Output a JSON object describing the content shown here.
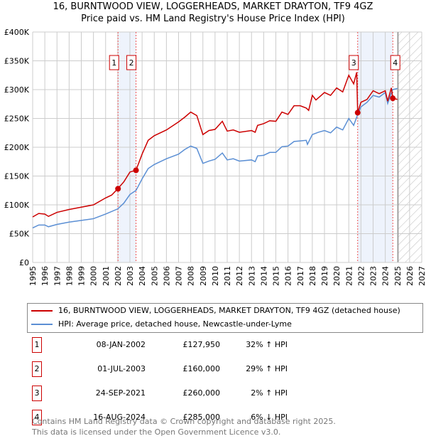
{
  "title": "16, BURNTWOOD VIEW, LOGGERHEADS, MARKET DRAYTON, TF9 4GZ",
  "subtitle": "Price paid vs. HM Land Registry's House Price Index (HPI)",
  "chart_data": {
    "type": "line",
    "ylim": [
      0,
      400000
    ],
    "xlim": [
      1995,
      2027
    ],
    "yticks": [
      "£0",
      "£50K",
      "£100K",
      "£150K",
      "£200K",
      "£250K",
      "£300K",
      "£350K",
      "£400K"
    ],
    "xticks": [
      "1995",
      "1996",
      "1997",
      "1998",
      "1999",
      "2000",
      "2001",
      "2002",
      "2003",
      "2004",
      "2005",
      "2006",
      "2007",
      "2008",
      "2009",
      "2010",
      "2011",
      "2012",
      "2013",
      "2014",
      "2015",
      "2016",
      "2017",
      "2018",
      "2019",
      "2020",
      "2021",
      "2022",
      "2023",
      "2024",
      "2025",
      "2026",
      "2027"
    ],
    "shaded": [
      [
        2002.02,
        2003.5
      ],
      [
        2021.73,
        2024.62
      ]
    ],
    "forecast_from": 2025.05,
    "series": [
      {
        "name": "16, BURNTWOOD VIEW, LOGGERHEADS, MARKET DRAYTON, TF9 4GZ (detached house)",
        "color": "#cc0000",
        "x": [
          1995,
          1995.5,
          1996,
          1996.3,
          1997,
          1998,
          1999,
          2000,
          2001,
          2001.5,
          2002,
          2002.5,
          2003,
          2003.5,
          2004,
          2004.5,
          2005,
          2006,
          2007,
          2007.5,
          2008,
          2008.5,
          2009,
          2009.5,
          2010,
          2010.6,
          2011,
          2011.5,
          2012,
          2013,
          2013.3,
          2013.5,
          2014,
          2014.5,
          2015,
          2015.5,
          2016,
          2016.5,
          2017,
          2017.5,
          2017.7,
          2018,
          2018.3,
          2019,
          2019.5,
          2020,
          2020.5,
          2021,
          2021.4,
          2021.65,
          2021.73,
          2022,
          2022.5,
          2023,
          2023.5,
          2024,
          2024.2,
          2024.5,
          2024.62,
          2025
        ],
        "y": [
          79,
          85,
          84,
          80,
          87,
          92,
          96,
          100,
          112,
          117,
          128,
          140,
          157,
          160,
          188,
          212,
          220,
          230,
          244,
          252,
          261,
          255,
          222,
          229,
          231,
          245,
          228,
          230,
          226,
          229,
          226,
          238,
          241,
          246,
          245,
          261,
          257,
          272,
          272,
          268,
          264,
          290,
          282,
          295,
          290,
          303,
          296,
          325,
          310,
          330,
          260,
          278,
          283,
          298,
          293,
          298,
          280,
          303,
          285,
          283
        ]
      },
      {
        "name": "HPI: Average price, detached house, Newcastle-under-Lyme",
        "color": "#5b8fd4",
        "x": [
          1995,
          1995.5,
          1996,
          1996.3,
          1997,
          1998,
          1999,
          2000,
          2001,
          2002,
          2002.5,
          2003,
          2003.5,
          2004,
          2004.5,
          2005,
          2006,
          2007,
          2007.5,
          2008,
          2008.5,
          2009,
          2009.5,
          2010,
          2010.6,
          2011,
          2011.5,
          2012,
          2013,
          2013.3,
          2013.5,
          2014,
          2014.5,
          2015,
          2015.5,
          2016,
          2016.5,
          2017,
          2017.5,
          2017.6,
          2018,
          2018.5,
          2019,
          2019.5,
          2020,
          2020.5,
          2021,
          2021.4,
          2021.7,
          2022,
          2022.5,
          2023,
          2023.5,
          2024,
          2024.2,
          2024.6,
          2025
        ],
        "y": [
          60,
          65,
          65,
          62,
          66,
          70,
          73,
          76,
          84,
          93,
          103,
          118,
          125,
          145,
          163,
          170,
          180,
          188,
          196,
          202,
          198,
          172,
          176,
          179,
          190,
          178,
          180,
          176,
          178,
          175,
          185,
          186,
          191,
          191,
          201,
          202,
          210,
          211,
          212,
          205,
          222,
          226,
          229,
          225,
          235,
          230,
          250,
          238,
          255,
          270,
          278,
          290,
          287,
          295,
          276,
          300,
          302
        ]
      }
    ],
    "sales": [
      {
        "label": "1",
        "x": 2002.02,
        "y": 127950
      },
      {
        "label": "2",
        "x": 2003.5,
        "y": 160000
      },
      {
        "label": "3",
        "x": 2021.73,
        "y": 260000
      },
      {
        "label": "4",
        "x": 2024.62,
        "y": 285000
      }
    ]
  },
  "legend": {
    "property": "16, BURNTWOOD VIEW, LOGGERHEADS, MARKET DRAYTON, TF9 4GZ (detached house)",
    "hpi": "HPI: Average price, detached house, Newcastle-under-Lyme",
    "property_color": "#cc0000",
    "hpi_color": "#5b8fd4"
  },
  "transactions": [
    {
      "num": "1",
      "date": "08-JAN-2002",
      "price": "£127,950",
      "hpi": "32% ↑ HPI"
    },
    {
      "num": "2",
      "date": "01-JUL-2003",
      "price": "£160,000",
      "hpi": "29% ↑ HPI"
    },
    {
      "num": "3",
      "date": "24-SEP-2021",
      "price": "£260,000",
      "hpi": "2% ↑ HPI"
    },
    {
      "num": "4",
      "date": "16-AUG-2024",
      "price": "£285,000",
      "hpi": "6% ↓ HPI"
    }
  ],
  "footer": {
    "line1": "Contains HM Land Registry data © Crown copyright and database right 2025.",
    "line2": "This data is licensed under the Open Government Licence v3.0."
  }
}
